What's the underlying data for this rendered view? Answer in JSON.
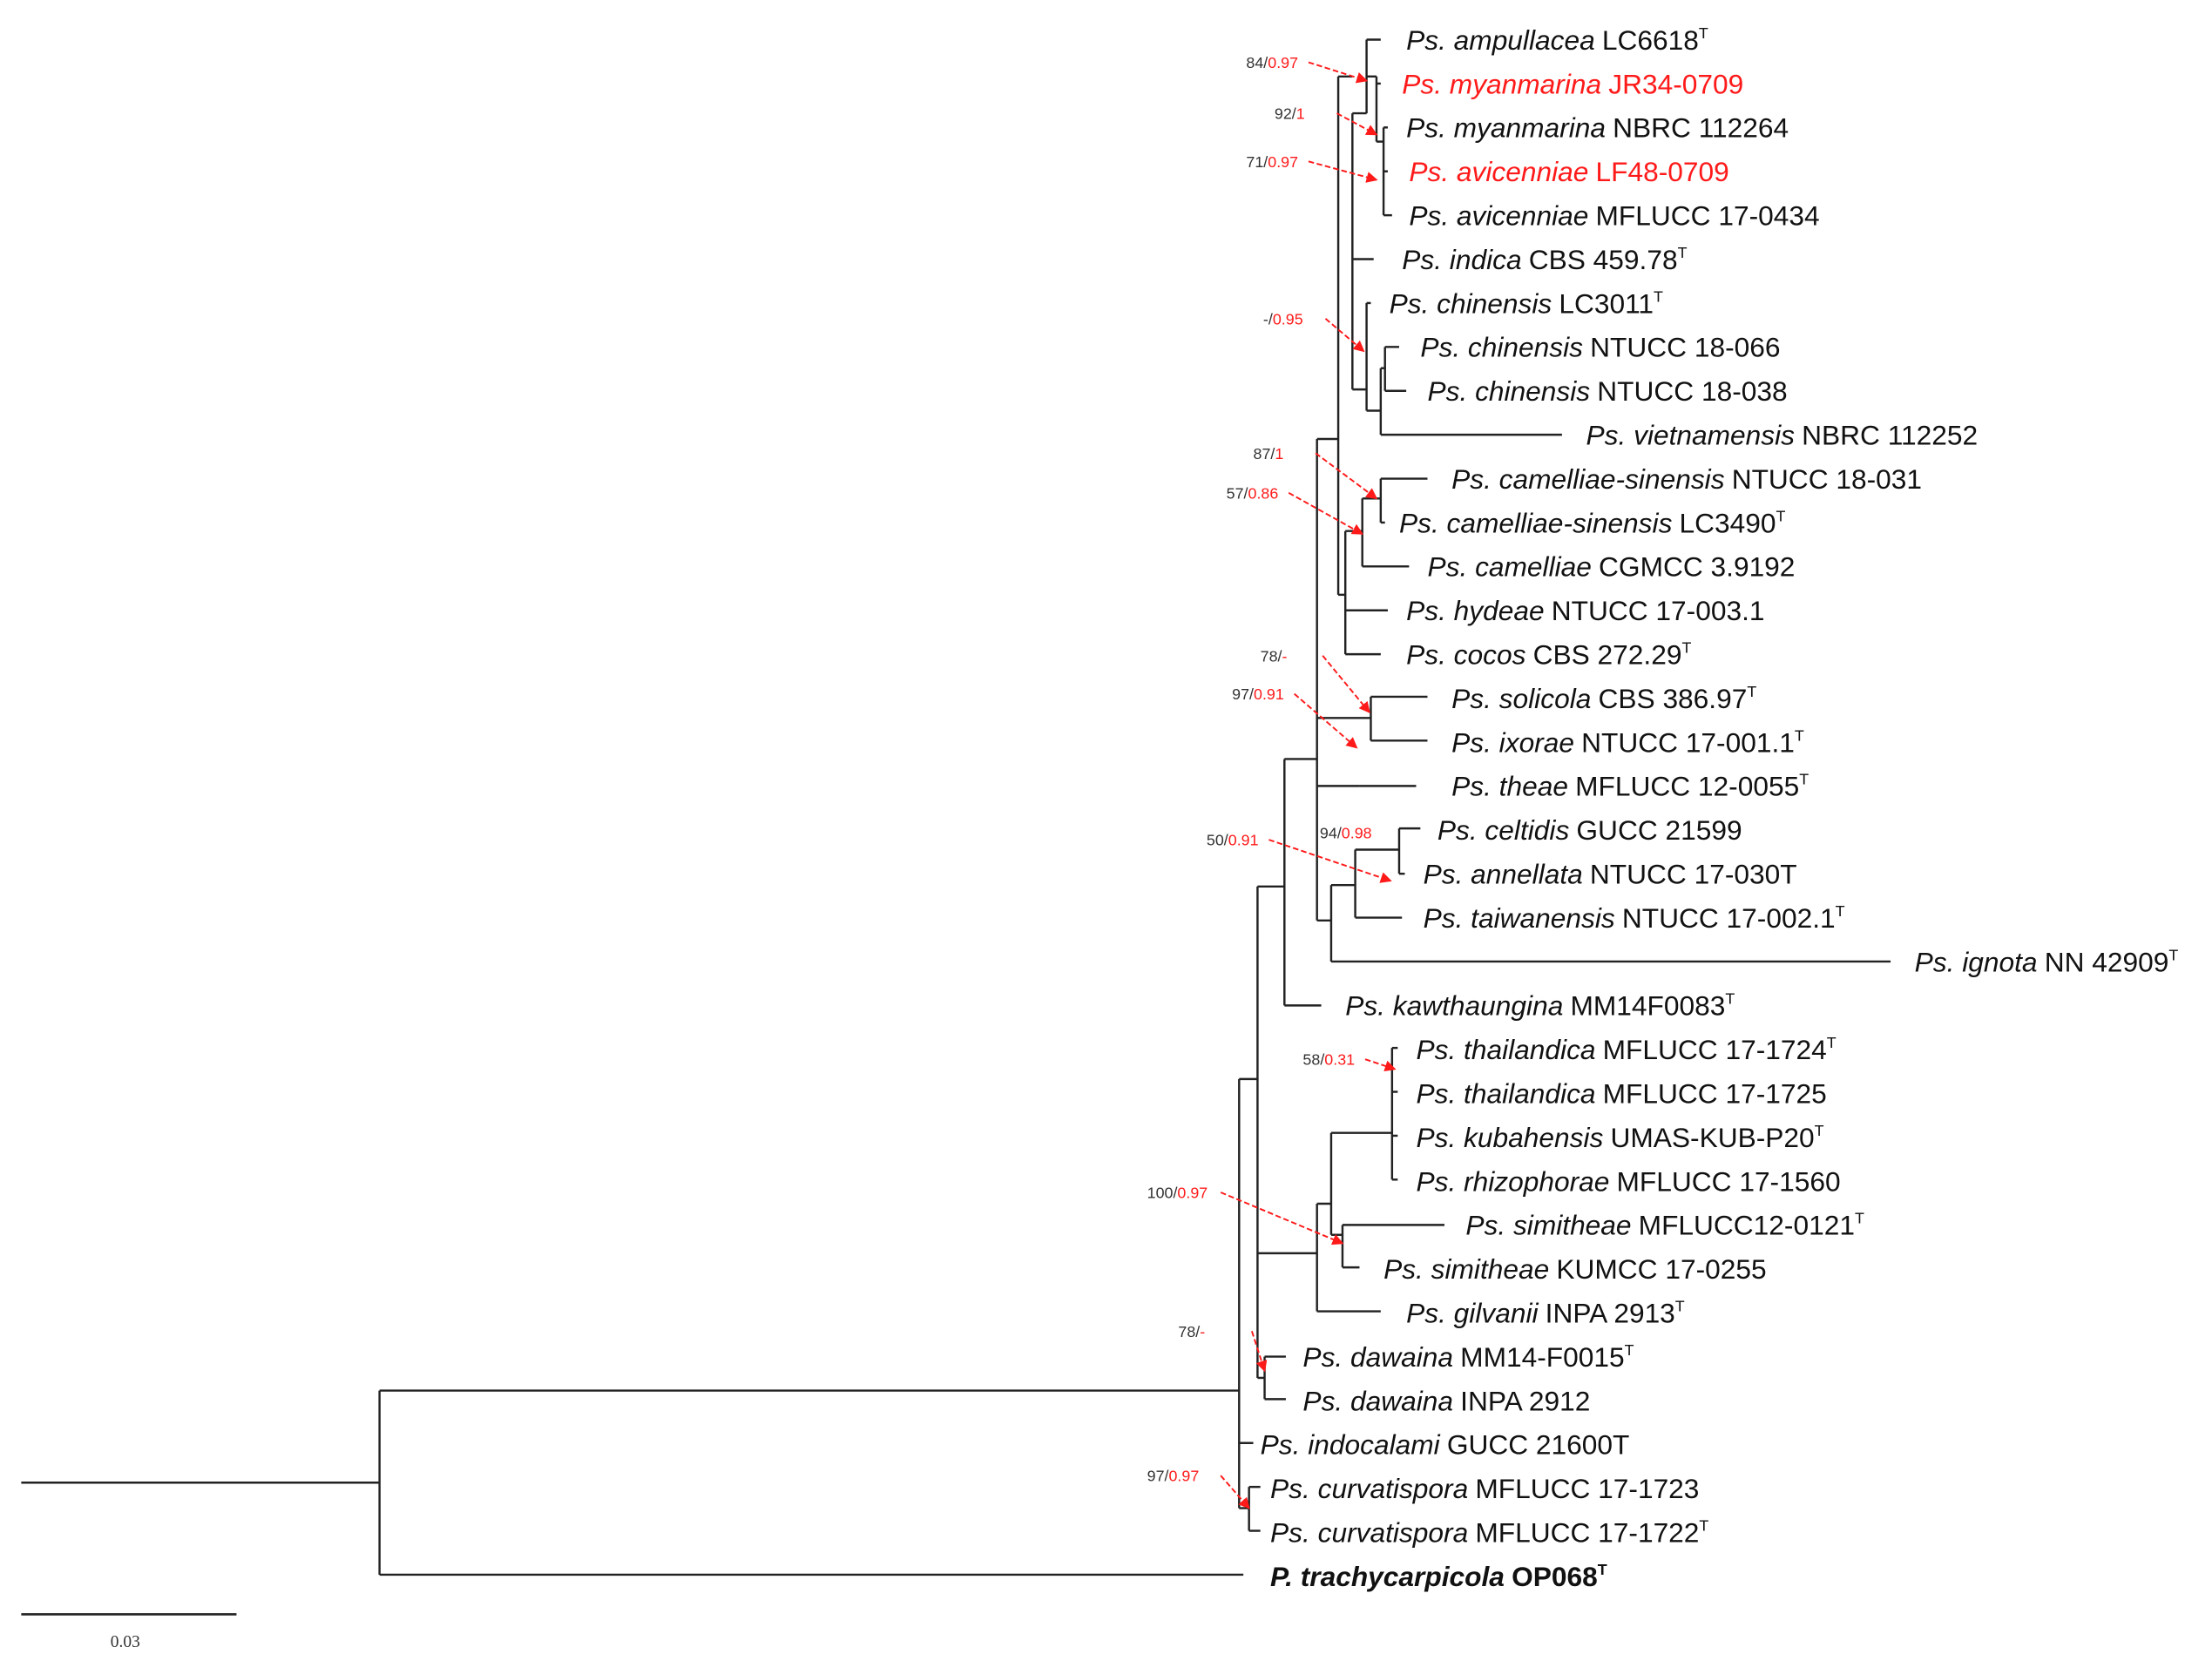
{
  "colors": {
    "highlight": "#ff1a1a",
    "text": "#111111",
    "support_bs": "#333333",
    "support_pp": "#ff1a1a",
    "branch": "#222222"
  },
  "taxa": [
    {
      "species": "Ps. ampullacea",
      "strain": "LC6618",
      "sup": "T",
      "highlight": false
    },
    {
      "species": "Ps. myanmarina",
      "strain": "JR34-0709",
      "sup": "",
      "highlight": true
    },
    {
      "species": "Ps. myanmarina",
      "strain": "NBRC 112264",
      "sup": "",
      "highlight": false
    },
    {
      "species": "Ps. avicenniae",
      "strain": "LF48-0709",
      "sup": "",
      "highlight": true
    },
    {
      "species": "Ps. avicenniae",
      "strain": "MFLUCC 17-0434",
      "sup": "",
      "highlight": false
    },
    {
      "species": "Ps. indica",
      "strain": "CBS 459.78",
      "sup": "T",
      "highlight": false
    },
    {
      "species": "Ps. chinensis",
      "strain": "LC3011",
      "sup": "T",
      "highlight": false
    },
    {
      "species": "Ps. chinensis",
      "strain": "NTUCC 18-066",
      "sup": "",
      "highlight": false
    },
    {
      "species": "Ps. chinensis",
      "strain": "NTUCC 18-038",
      "sup": "",
      "highlight": false
    },
    {
      "species": "Ps. vietnamensis",
      "strain": "NBRC 112252",
      "sup": "",
      "highlight": false
    },
    {
      "species": "Ps. camelliae-sinensis",
      "strain": "NTUCC 18-031",
      "sup": "",
      "highlight": false
    },
    {
      "species": "Ps. camelliae-sinensis",
      "strain": "LC3490",
      "sup": "T",
      "highlight": false
    },
    {
      "species": "Ps. camelliae",
      "strain": "CGMCC 3.9192",
      "sup": "",
      "highlight": false
    },
    {
      "species": "Ps. hydeae",
      "strain": "NTUCC 17-003.1",
      "sup": "",
      "highlight": false
    },
    {
      "species": "Ps. cocos",
      "strain": "CBS 272.29",
      "sup": "T",
      "highlight": false
    },
    {
      "species": "Ps. solicola",
      "strain": "CBS 386.97",
      "sup": "T",
      "highlight": false
    },
    {
      "species": "Ps. ixorae",
      "strain": "NTUCC 17-001.1",
      "sup": "T",
      "highlight": false
    },
    {
      "species": "Ps. theae",
      "strain": "MFLUCC 12-0055",
      "sup": "T",
      "highlight": false
    },
    {
      "species": "Ps. celtidis",
      "strain": "GUCC 21599",
      "sup": "",
      "highlight": false
    },
    {
      "species": "Ps. annellata",
      "strain": "NTUCC 17-030T",
      "sup": "",
      "highlight": false
    },
    {
      "species": "Ps. taiwanensis",
      "strain": "NTUCC 17-002.1",
      "sup": "T",
      "highlight": false
    },
    {
      "species": "Ps. ignota",
      "strain": "NN 42909",
      "sup": "T",
      "highlight": false
    },
    {
      "species": "Ps. kawthaungina",
      "strain": "MM14F0083",
      "sup": "T",
      "highlight": false
    },
    {
      "species": "Ps. thailandica",
      "strain": "MFLUCC 17-1724",
      "sup": "T",
      "highlight": false
    },
    {
      "species": "Ps. thailandica",
      "strain": "MFLUCC 17-1725",
      "sup": "",
      "highlight": false
    },
    {
      "species": "Ps. kubahensis",
      "strain": "UMAS-KUB-P20",
      "sup": "T",
      "highlight": false
    },
    {
      "species": "Ps. rhizophorae",
      "strain": "MFLUCC 17-1560",
      "sup": "",
      "highlight": false
    },
    {
      "species": "Ps. simitheae",
      "strain": "MFLUCC12-0121",
      "sup": "T",
      "highlight": false
    },
    {
      "species": "Ps. simitheae",
      "strain": "KUMCC 17-0255",
      "sup": "",
      "highlight": false
    },
    {
      "species": "Ps. gilvanii",
      "strain": "INPA 2913",
      "sup": "T",
      "highlight": false
    },
    {
      "species": "Ps. dawaina",
      "strain": "MM14-F0015",
      "sup": "T",
      "highlight": false
    },
    {
      "species": "Ps. dawaina",
      "strain": "INPA 2912",
      "sup": "",
      "highlight": false
    },
    {
      "species": "Ps. indocalami",
      "strain": "GUCC 21600T",
      "sup": "",
      "highlight": false
    },
    {
      "species": "Ps. curvatispora",
      "strain": "MFLUCC 17-1723",
      "sup": "",
      "highlight": false
    },
    {
      "species": "Ps. curvatispora",
      "strain": "MFLUCC 17-1722",
      "sup": "T",
      "highlight": false
    },
    {
      "species": "P. trachycarpicola",
      "strain": "OP068",
      "sup": "T",
      "highlight": false,
      "outgroup": true
    }
  ],
  "supports": [
    {
      "bs": "84/",
      "pp": "0.97"
    },
    {
      "bs": "92/",
      "pp": "1"
    },
    {
      "bs": "71/",
      "pp": "0.97"
    },
    {
      "bs": "-/",
      "pp": "0.95"
    },
    {
      "bs": "87/",
      "pp": "1"
    },
    {
      "bs": "57/",
      "pp": "0.86"
    },
    {
      "bs": "78/",
      "pp": "-"
    },
    {
      "bs": "97/",
      "pp": "0.91"
    },
    {
      "bs": "94/",
      "pp": "0.98"
    },
    {
      "bs": "50/",
      "pp": "0.91"
    },
    {
      "bs": "58/",
      "pp": "0.31"
    },
    {
      "bs": "100/",
      "pp": "0.97"
    },
    {
      "bs": "78/",
      "pp": "-"
    },
    {
      "bs": "97/",
      "pp": "0.97"
    }
  ],
  "scale_bar": {
    "label": "0.03"
  }
}
